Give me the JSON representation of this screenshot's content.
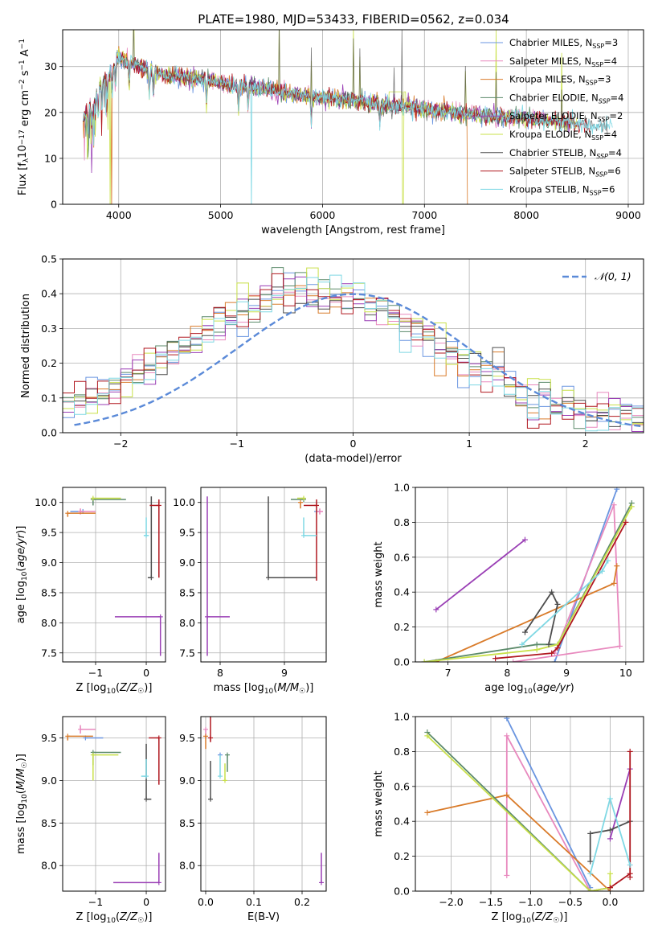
{
  "figure": {
    "title": "PLATE=1980, MJD=53433, FIBERID=0562, z=0.034"
  },
  "series_colors": [
    "#6a95e0",
    "#e889be",
    "#d97b2a",
    "#5b8a6a",
    "#9a3fb5",
    "#c9e04a",
    "#4d4d4d",
    "#b0171f",
    "#7fd8e4"
  ],
  "chart_data": [
    {
      "type": "line",
      "panel": "spectrum",
      "xlabel": "wavelength [Angstrom, rest frame]",
      "ylabel": "Flux [fλ10⁻¹⁷ erg cm⁻² s⁻¹ A⁻¹]",
      "xlim": [
        3450,
        9150
      ],
      "ylim": [
        0,
        38
      ],
      "xticks": [
        4000,
        5000,
        6000,
        7000,
        8000,
        9000
      ],
      "yticks": [
        0,
        10,
        20,
        30
      ],
      "legend_position": "top-right",
      "legend": [
        "Chabrier MILES, N_SSP=3",
        "Salpeter MILES, N_SSP=4",
        "Kroupa MILES, N_SSP=3",
        "Chabrier ELODIE, N_SSP=4",
        "Salpeter ELODIE, N_SSP=2",
        "Kroupa ELODIE, N_SSP=4",
        "Chabrier STELIB, N_SSP=4",
        "Salpeter STELIB, N_SSP=6",
        "Kroupa STELIB, N_SSP=6"
      ],
      "legend_labels": [
        {
          "name": "Chabrier MILES, N",
          "sub": "SSP",
          "post": "=3"
        },
        {
          "name": "Salpeter MILES, N",
          "sub": "SSP",
          "post": "=4"
        },
        {
          "name": "Kroupa MILES, N",
          "sub": "SSP",
          "post": "=3"
        },
        {
          "name": "Chabrier ELODIE, N",
          "sub": "SSP",
          "post": "=4"
        },
        {
          "name": "Salpeter ELODIE, N",
          "sub": "SSP",
          "post": "=2"
        },
        {
          "name": "Kroupa ELODIE, N",
          "sub": "SSP",
          "post": "=4"
        },
        {
          "name": "Chabrier STELIB, N",
          "sub": "SSP",
          "post": "=4"
        },
        {
          "name": "Salpeter STELIB, N",
          "sub": "SSP",
          "post": "=6"
        },
        {
          "name": "Kroupa STELIB, N",
          "sub": "SSP",
          "post": "=6"
        }
      ],
      "continuum": {
        "x": [
          3650,
          3700,
          3800,
          3900,
          4000,
          4100,
          4200,
          4300,
          4400,
          4500,
          4700,
          4900,
          5100,
          5300,
          5500,
          5700,
          5900,
          6100,
          6300,
          6500,
          6700,
          6900,
          7100,
          7300,
          7500,
          7800,
          8100,
          8400,
          8700,
          8850
        ],
        "y": [
          18,
          21,
          25,
          28,
          32,
          31,
          30,
          29,
          28.5,
          28,
          27.5,
          27,
          26,
          25.5,
          25,
          24,
          23.5,
          23,
          22.5,
          22,
          21.5,
          21,
          20.5,
          20,
          19.5,
          19,
          18.5,
          17.8,
          17.2,
          17
        ]
      },
      "features": {
        "absorption": [
          3700,
          3734,
          3750,
          3771,
          3798,
          3835,
          3889,
          3934,
          3969,
          4102,
          4300,
          4340,
          4861,
          5175,
          5270,
          5890,
          6563
        ],
        "emission": [
          4150,
          5577,
          5890,
          6300,
          6363,
          6700,
          6780,
          7400,
          7700,
          8350
        ]
      },
      "line_drops": [
        {
          "series": 5,
          "x": 3915
        },
        {
          "series": 8,
          "x": 5300
        },
        {
          "series": 5,
          "x": 6790
        },
        {
          "series": 2,
          "x": 7425
        },
        {
          "series": 2,
          "x": 3930
        }
      ]
    },
    {
      "type": "bar",
      "panel": "residual_histogram",
      "xlabel": "(data-model)/error",
      "ylabel": "Normed distribution",
      "xlim": [
        -2.5,
        2.5
      ],
      "ylim": [
        0,
        0.5
      ],
      "xticks": [
        -2,
        -1,
        0,
        1,
        2
      ],
      "yticks": [
        0.0,
        0.1,
        0.2,
        0.3,
        0.4,
        0.5
      ],
      "bin_width": 0.1,
      "legend_position": "top-right",
      "curve_label": "𝒩(0, 1)",
      "normal_curve": {
        "mean": 0,
        "sigma": 1,
        "color": "#5b8ad8"
      }
    },
    {
      "type": "scatter",
      "panel": "age_vs_Z",
      "xlabel": "Z [log10(Z/Z☉)]",
      "ylabel": "age [log10(age/yr)]",
      "xlim": [
        -1.65,
        0.38
      ],
      "ylim": [
        7.35,
        10.25
      ],
      "xticks": [
        -1,
        0
      ],
      "yticks": [
        7.5,
        8.0,
        8.5,
        9.0,
        9.5,
        10.0
      ],
      "points": [
        {
          "series": 0,
          "x": -1.25,
          "y": 9.85,
          "xerr": [
            0.25,
            0.0
          ],
          "yerr": [
            0.0,
            0.0
          ]
        },
        {
          "series": 1,
          "x": -1.3,
          "y": 9.85,
          "xerr": [
            0.0,
            0.3
          ],
          "yerr": [
            0.05,
            0.05
          ]
        },
        {
          "series": 2,
          "x": -1.55,
          "y": 9.82,
          "xerr": [
            0.0,
            0.55
          ],
          "yerr": [
            0.06,
            0.0
          ]
        },
        {
          "series": 3,
          "x": -1.05,
          "y": 10.05,
          "xerr": [
            0.0,
            0.65
          ],
          "yerr": [
            0.1,
            0.0
          ]
        },
        {
          "series": 4,
          "x": 0.28,
          "y": 8.1,
          "xerr": [
            0.9,
            0.0
          ],
          "yerr": [
            0.65,
            0.0
          ]
        },
        {
          "series": 5,
          "x": -1.05,
          "y": 10.07,
          "xerr": [
            0.0,
            0.55
          ],
          "yerr": [
            0.0,
            0.0
          ]
        },
        {
          "series": 6,
          "x": 0.1,
          "y": 8.75,
          "xerr": [
            0.07,
            0.0
          ],
          "yerr": [
            0.0,
            1.35
          ]
        },
        {
          "series": 7,
          "x": 0.25,
          "y": 9.95,
          "xerr": [
            0.18,
            0.0
          ],
          "yerr": [
            1.2,
            0.1
          ]
        },
        {
          "series": 8,
          "x": 0.0,
          "y": 9.45,
          "xerr": [
            0.05,
            0.05
          ],
          "yerr": [
            0.0,
            0.3
          ]
        }
      ]
    },
    {
      "type": "scatter",
      "panel": "age_vs_mass",
      "xlabel": "mass [log10(M/M☉)]",
      "ylabel": "",
      "xlim": [
        7.7,
        9.65
      ],
      "ylim": [
        7.35,
        10.25
      ],
      "xticks": [
        8,
        9
      ],
      "yticks": [
        7.5,
        8.0,
        8.5,
        9.0,
        9.5,
        10.0
      ],
      "points": [
        {
          "series": 0,
          "x": 9.5,
          "y": 9.85,
          "xerr": [
            0.0,
            0.0
          ],
          "yerr": [
            0.0,
            0.0
          ]
        },
        {
          "series": 1,
          "x": 9.55,
          "y": 9.85,
          "xerr": [
            0.05,
            0.05
          ],
          "yerr": [
            0.05,
            0.05
          ]
        },
        {
          "series": 2,
          "x": 9.25,
          "y": 10.0,
          "xerr": [
            0.0,
            0.0
          ],
          "yerr": [
            0.1,
            0.0
          ]
        },
        {
          "series": 3,
          "x": 9.3,
          "y": 10.05,
          "xerr": [
            0.2,
            0.0
          ],
          "yerr": [
            0.0,
            0.0
          ]
        },
        {
          "series": 4,
          "x": 7.8,
          "y": 8.1,
          "xerr": [
            0.0,
            0.35
          ],
          "yerr": [
            0.65,
            2.0
          ]
        },
        {
          "series": 5,
          "x": 9.3,
          "y": 10.07,
          "xerr": [
            0.1,
            0.0
          ],
          "yerr": [
            0.0,
            0.0
          ]
        },
        {
          "series": 6,
          "x": 8.75,
          "y": 8.75,
          "xerr": [
            0.0,
            0.75
          ],
          "yerr": [
            0.0,
            1.35
          ]
        },
        {
          "series": 7,
          "x": 9.5,
          "y": 9.95,
          "xerr": [
            0.2,
            0.0
          ],
          "yerr": [
            1.25,
            0.1
          ]
        },
        {
          "series": 8,
          "x": 9.3,
          "y": 9.45,
          "xerr": [
            0.0,
            0.2
          ],
          "yerr": [
            0.0,
            0.3
          ]
        }
      ]
    },
    {
      "type": "line",
      "panel": "mass_weight_vs_age",
      "xlabel": "age log10(age/yr)",
      "ylabel": "mass weight",
      "xlim": [
        6.45,
        10.3
      ],
      "ylim": [
        0,
        1.0
      ],
      "xticks": [
        7,
        8,
        9,
        10
      ],
      "yticks": [
        0.0,
        0.2,
        0.4,
        0.6,
        0.8,
        1.0
      ],
      "series": [
        {
          "series": 0,
          "x": [
            8.8,
            9.85
          ],
          "y": [
            0.0,
            0.99
          ]
        },
        {
          "series": 1,
          "x": [
            8.8,
            9.8,
            9.9,
            8.1
          ],
          "y": [
            0.05,
            0.9,
            0.09,
            0.0
          ]
        },
        {
          "series": 2,
          "x": [
            6.8,
            9.8,
            9.85
          ],
          "y": [
            0.0,
            0.45,
            0.55
          ]
        },
        {
          "series": 3,
          "x": [
            6.6,
            8.5,
            8.85,
            10.1
          ],
          "y": [
            0.0,
            0.1,
            0.1,
            0.91
          ]
        },
        {
          "series": 4,
          "x": [
            6.8,
            8.3
          ],
          "y": [
            0.3,
            0.7
          ]
        },
        {
          "series": 5,
          "x": [
            6.6,
            8.5,
            8.85,
            10.1
          ],
          "y": [
            0.0,
            0.07,
            0.1,
            0.89
          ]
        },
        {
          "series": 6,
          "x": [
            8.3,
            8.75,
            8.85,
            8.7
          ],
          "y": [
            0.17,
            0.4,
            0.33,
            0.1
          ]
        },
        {
          "series": 7,
          "x": [
            7.8,
            8.75,
            8.85,
            10.0
          ],
          "y": [
            0.02,
            0.05,
            0.08,
            0.8
          ]
        },
        {
          "series": 8,
          "x": [
            8.25,
            9.6,
            9.7
          ],
          "y": [
            0.1,
            0.52,
            0.58
          ]
        }
      ]
    },
    {
      "type": "scatter",
      "panel": "mass_vs_Z",
      "xlabel": "Z [log10(Z/Z☉)]",
      "ylabel": "mass [log10(M/M☉)]",
      "xlim": [
        -1.65,
        0.38
      ],
      "ylim": [
        7.7,
        9.75
      ],
      "xticks": [
        -1,
        0
      ],
      "yticks": [
        8.0,
        8.5,
        9.0,
        9.5
      ],
      "points": [
        {
          "series": 0,
          "x": -1.2,
          "y": 9.5,
          "xerr": [
            0.0,
            0.35
          ],
          "yerr": [
            0.0,
            0.0
          ]
        },
        {
          "series": 1,
          "x": -1.3,
          "y": 9.6,
          "xerr": [
            0.0,
            0.3
          ],
          "yerr": [
            0.05,
            0.05
          ]
        },
        {
          "series": 2,
          "x": -1.55,
          "y": 9.52,
          "xerr": [
            0.0,
            0.5
          ],
          "yerr": [
            0.05,
            0.0
          ]
        },
        {
          "series": 3,
          "x": -1.05,
          "y": 9.33,
          "xerr": [
            0.0,
            0.55
          ],
          "yerr": [
            0.15,
            0.0
          ]
        },
        {
          "series": 4,
          "x": 0.25,
          "y": 7.8,
          "xerr": [
            0.9,
            0.0
          ],
          "yerr": [
            0.0,
            0.35
          ]
        },
        {
          "series": 5,
          "x": -1.05,
          "y": 9.3,
          "xerr": [
            0.0,
            0.5
          ],
          "yerr": [
            0.3,
            0.0
          ]
        },
        {
          "series": 6,
          "x": 0.0,
          "y": 8.78,
          "xerr": [
            0.0,
            0.1
          ],
          "yerr": [
            0.0,
            0.65
          ]
        },
        {
          "series": 7,
          "x": 0.25,
          "y": 9.5,
          "xerr": [
            0.2,
            0.0
          ],
          "yerr": [
            0.55,
            0.0
          ]
        },
        {
          "series": 8,
          "x": 0.0,
          "y": 9.05,
          "xerr": [
            0.1,
            0.0
          ],
          "yerr": [
            0.0,
            0.2
          ]
        }
      ]
    },
    {
      "type": "scatter",
      "panel": "mass_vs_ebv",
      "xlabel": "E(B-V)",
      "ylabel": "",
      "xlim": [
        -0.01,
        0.25
      ],
      "ylim": [
        7.7,
        9.75
      ],
      "xticks": [
        0.0,
        0.1,
        0.2
      ],
      "yticks": [
        8.0,
        8.5,
        9.0,
        9.5
      ],
      "points": [
        {
          "series": 0,
          "x": 0.03,
          "y": 9.3,
          "xerr": [
            0,
            0
          ],
          "yerr": [
            0.0,
            0.0
          ]
        },
        {
          "series": 1,
          "x": 0.0,
          "y": 9.6,
          "xerr": [
            0,
            0
          ],
          "yerr": [
            0.1,
            0.0
          ]
        },
        {
          "series": 2,
          "x": 0.0,
          "y": 9.52,
          "xerr": [
            0,
            0
          ],
          "yerr": [
            0.15,
            0.0
          ]
        },
        {
          "series": 3,
          "x": 0.045,
          "y": 9.3,
          "xerr": [
            0,
            0
          ],
          "yerr": [
            0.2,
            0.0
          ]
        },
        {
          "series": 4,
          "x": 0.24,
          "y": 7.8,
          "xerr": [
            0,
            0
          ],
          "yerr": [
            0.0,
            0.35
          ]
        },
        {
          "series": 5,
          "x": 0.04,
          "y": 9.0,
          "xerr": [
            0,
            0
          ],
          "yerr": [
            0.0,
            0.2
          ]
        },
        {
          "series": 6,
          "x": 0.01,
          "y": 8.78,
          "xerr": [
            0,
            0
          ],
          "yerr": [
            0.0,
            0.45
          ]
        },
        {
          "series": 7,
          "x": 0.01,
          "y": 9.5,
          "xerr": [
            0,
            0
          ],
          "yerr": [
            0.05,
            0.5
          ]
        },
        {
          "series": 8,
          "x": 0.03,
          "y": 9.05,
          "xerr": [
            0,
            0
          ],
          "yerr": [
            0.0,
            0.25
          ]
        }
      ]
    },
    {
      "type": "line",
      "panel": "mass_weight_vs_Z",
      "xlabel": "Z [log10(Z/Z☉)]",
      "ylabel": "mass weight",
      "xlim": [
        -2.45,
        0.42
      ],
      "ylim": [
        0,
        1.0
      ],
      "xticks": [
        -2.0,
        -1.5,
        -1.0,
        -0.5,
        0.0
      ],
      "yticks": [
        0.0,
        0.2,
        0.4,
        0.6,
        0.8,
        1.0
      ],
      "series": [
        {
          "series": 0,
          "x": [
            -1.3,
            -0.25
          ],
          "y": [
            0.99,
            0.02
          ]
        },
        {
          "series": 1,
          "x": [
            -1.3,
            -1.3,
            -0.25,
            0.0
          ],
          "y": [
            0.09,
            0.89,
            0.0,
            0.02
          ]
        },
        {
          "series": 2,
          "x": [
            -2.3,
            -1.3,
            0.0
          ],
          "y": [
            0.45,
            0.55,
            0.0
          ]
        },
        {
          "series": 3,
          "x": [
            -2.3,
            -0.25,
            0.0
          ],
          "y": [
            0.91,
            0.0,
            0.02
          ]
        },
        {
          "series": 4,
          "x": [
            0.0,
            0.25
          ],
          "y": [
            0.3,
            0.7
          ]
        },
        {
          "series": 5,
          "x": [
            -2.3,
            -0.25,
            0.0,
            0.0
          ],
          "y": [
            0.89,
            0.0,
            0.02,
            0.1
          ]
        },
        {
          "series": 6,
          "x": [
            -0.25,
            -0.25,
            0.0,
            0.25
          ],
          "y": [
            0.17,
            0.33,
            0.35,
            0.4
          ]
        },
        {
          "series": 7,
          "x": [
            0.0,
            0.25,
            0.25,
            0.25
          ],
          "y": [
            0.02,
            0.1,
            0.8,
            0.08
          ]
        },
        {
          "series": 8,
          "x": [
            -0.25,
            0.0,
            0.25
          ],
          "y": [
            0.1,
            0.53,
            0.15
          ]
        }
      ]
    }
  ]
}
